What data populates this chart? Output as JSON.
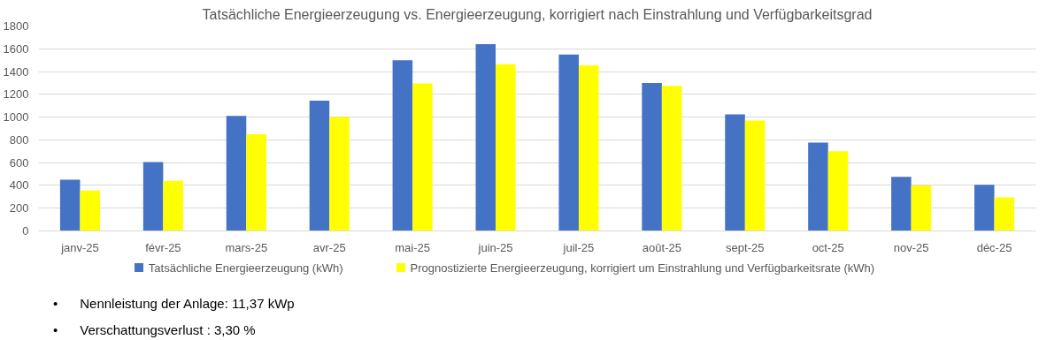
{
  "chart_data": {
    "type": "bar",
    "title": "Tatsächliche Energieerzeugung vs. Energieerzeugung, korrigiert nach Einstrahlung und Verfügbarkeitsgrad",
    "categories": [
      "janv-25",
      "févr-25",
      "mars-25",
      "avr-25",
      "mai-25",
      "juin-25",
      "juil-25",
      "août-25",
      "sept-25",
      "oct-25",
      "nov-25",
      "déc-25"
    ],
    "series": [
      {
        "name": "Tatsächliche Energieerzeugung (kWh)",
        "color": "#4472c4",
        "values": [
          450,
          605,
          1010,
          1145,
          1500,
          1640,
          1550,
          1300,
          1025,
          775,
          475,
          405
        ]
      },
      {
        "name": "Prognostizierte Energieerzeugung, korrigiert um Einstrahlung und Verfügbarkeitsrate (kWh)",
        "color": "#ffff00",
        "values": [
          355,
          440,
          850,
          1000,
          1295,
          1465,
          1455,
          1275,
          970,
          700,
          400,
          295
        ]
      }
    ],
    "ylim": [
      0,
      1800
    ],
    "yticks": [
      0,
      200,
      400,
      600,
      800,
      1000,
      1200,
      1400,
      1600,
      1800
    ],
    "grid": "y",
    "legend": "bottom",
    "annotations": [
      "•      Nennleistung der Anlage: 11,37 kWp",
      "•      Verschattungsverlust : 3,30 %"
    ]
  }
}
